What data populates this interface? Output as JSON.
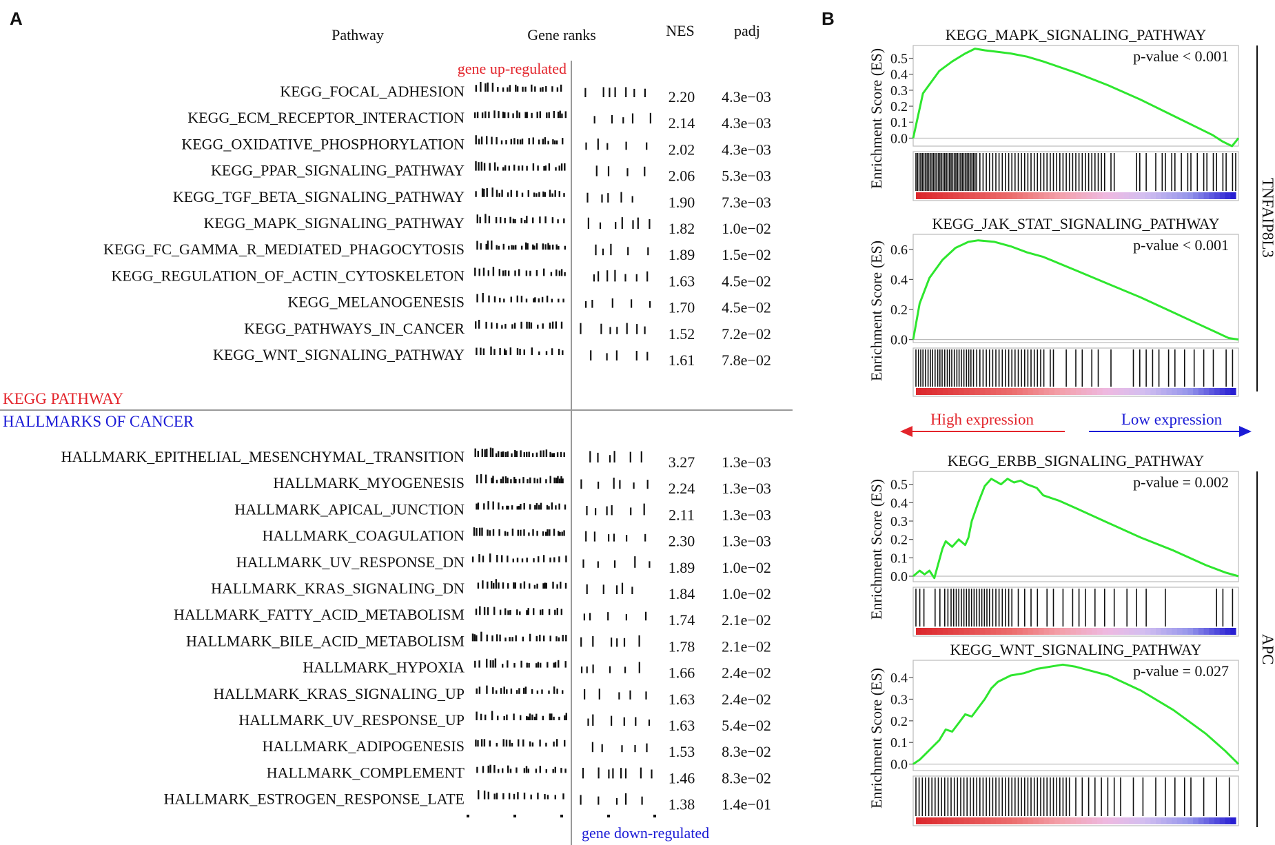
{
  "panel_a": {
    "letter": "A",
    "headers": {
      "pathway": "Pathway",
      "gene_ranks": "Gene ranks",
      "nes": "NES",
      "padj": "padj"
    },
    "up_label": "gene up-regulated",
    "down_label": "gene down-regulated",
    "kegg_section_label": "KEGG PATHWAY",
    "hallmark_section_label": "HALLMARKS OF CANCER",
    "colors": {
      "up": "#e3242b",
      "down": "#1b1bd6",
      "kegg": "#e3242b",
      "hallmark": "#1b1bd6"
    }
  },
  "panel_b": {
    "letter": "B",
    "ylabel": "Enrichment Score (ES)",
    "high_label": "High expression",
    "low_label": "Low expression",
    "groups": [
      {
        "label": "TNFAIP8L3"
      },
      {
        "label": "APC"
      }
    ],
    "colors": {
      "curve": "#2ee62e",
      "high": "#e3242b",
      "low": "#1b1bd6"
    }
  },
  "chart_data": [
    {
      "type": "table",
      "rows": [
        {
          "pathway": "KEGG_FOCAL_ADHESION",
          "nes": "2.20",
          "padj": "4.3e−03"
        },
        {
          "pathway": "KEGG_ECM_RECEPTOR_INTERACTION",
          "nes": "2.14",
          "padj": "4.3e−03"
        },
        {
          "pathway": "KEGG_OXIDATIVE_PHOSPHORYLATION",
          "nes": "2.02",
          "padj": "4.3e−03"
        },
        {
          "pathway": "KEGG_PPAR_SIGNALING_PATHWAY",
          "nes": "2.06",
          "padj": "5.3e−03"
        },
        {
          "pathway": "KEGG_TGF_BETA_SIGNALING_PATHWAY",
          "nes": "1.90",
          "padj": "7.3e−03"
        },
        {
          "pathway": "KEGG_MAPK_SIGNALING_PATHWAY",
          "nes": "1.82",
          "padj": "1.0e−02"
        },
        {
          "pathway": "KEGG_FC_GAMMA_R_MEDIATED_PHAGOCYTOSIS",
          "nes": "1.89",
          "padj": "1.5e−02"
        },
        {
          "pathway": "KEGG_REGULATION_OF_ACTIN_CYTOSKELETON",
          "nes": "1.63",
          "padj": "4.5e−02"
        },
        {
          "pathway": "KEGG_MELANOGENESIS",
          "nes": "1.70",
          "padj": "4.5e−02"
        },
        {
          "pathway": "KEGG_PATHWAYS_IN_CANCER",
          "nes": "1.52",
          "padj": "7.2e−02"
        },
        {
          "pathway": "KEGG_WNT_SIGNALING_PATHWAY",
          "nes": "1.61",
          "padj": "7.8e−02"
        },
        {
          "pathway": "HALLMARK_EPITHELIAL_MESENCHYMAL_TRANSITION",
          "nes": "3.27",
          "padj": "1.3e−03"
        },
        {
          "pathway": "HALLMARK_MYOGENESIS",
          "nes": "2.24",
          "padj": "1.3e−03"
        },
        {
          "pathway": "HALLMARK_APICAL_JUNCTION",
          "nes": "2.11",
          "padj": "1.3e−03"
        },
        {
          "pathway": "HALLMARK_COAGULATION",
          "nes": "2.30",
          "padj": "1.3e−03"
        },
        {
          "pathway": "HALLMARK_UV_RESPONSE_DN",
          "nes": "1.89",
          "padj": "1.0e−02"
        },
        {
          "pathway": "HALLMARK_KRAS_SIGNALING_DN",
          "nes": "1.84",
          "padj": "1.0e−02"
        },
        {
          "pathway": "HALLMARK_FATTY_ACID_METABOLISM",
          "nes": "1.74",
          "padj": "2.1e−02"
        },
        {
          "pathway": "HALLMARK_BILE_ACID_METABOLISM",
          "nes": "1.78",
          "padj": "2.1e−02"
        },
        {
          "pathway": "HALLMARK_HYPOXIA",
          "nes": "1.66",
          "padj": "2.4e−02"
        },
        {
          "pathway": "HALLMARK_KRAS_SIGNALING_UP",
          "nes": "1.63",
          "padj": "2.4e−02"
        },
        {
          "pathway": "HALLMARK_UV_RESPONSE_UP",
          "nes": "1.63",
          "padj": "5.4e−02"
        },
        {
          "pathway": "HALLMARK_ADIPOGENESIS",
          "nes": "1.53",
          "padj": "8.3e−02"
        },
        {
          "pathway": "HALLMARK_COMPLEMENT",
          "nes": "1.46",
          "padj": "8.3e−02"
        },
        {
          "pathway": "HALLMARK_ESTROGEN_RESPONSE_LATE",
          "nes": "1.38",
          "padj": "1.4e−01"
        }
      ]
    },
    {
      "type": "line",
      "title": "KEGG_MAPK_SIGNALING_PATHWAY",
      "annotation": "p-value < 0.001",
      "group": "TNFAIP8L3",
      "ylabel": "Enrichment Score (ES)",
      "x": [
        0,
        0.03,
        0.08,
        0.12,
        0.16,
        0.19,
        0.22,
        0.26,
        0.3,
        0.35,
        0.4,
        0.5,
        0.6,
        0.7,
        0.8,
        0.87,
        0.92,
        0.95,
        0.98,
        1.0
      ],
      "y": [
        0.0,
        0.28,
        0.42,
        0.48,
        0.53,
        0.56,
        0.55,
        0.54,
        0.53,
        0.51,
        0.48,
        0.41,
        0.33,
        0.24,
        0.14,
        0.07,
        0.02,
        -0.02,
        -0.05,
        0.0
      ],
      "ylim": [
        -0.05,
        0.58
      ],
      "yticks": [
        "0.5",
        "0.4",
        "0.3",
        "0.2",
        "0.1",
        "0.0"
      ],
      "ytick_values": [
        0.5,
        0.4,
        0.3,
        0.2,
        0.1,
        0.0
      ],
      "hits": [
        0.0,
        0.005,
        0.01,
        0.015,
        0.02,
        0.025,
        0.03,
        0.035,
        0.04,
        0.045,
        0.05,
        0.055,
        0.06,
        0.065,
        0.07,
        0.075,
        0.08,
        0.085,
        0.09,
        0.095,
        0.1,
        0.105,
        0.11,
        0.115,
        0.12,
        0.125,
        0.13,
        0.135,
        0.14,
        0.145,
        0.15,
        0.155,
        0.16,
        0.165,
        0.17,
        0.175,
        0.18,
        0.185,
        0.19,
        0.2,
        0.21,
        0.22,
        0.23,
        0.24,
        0.25,
        0.26,
        0.27,
        0.28,
        0.29,
        0.3,
        0.31,
        0.32,
        0.33,
        0.34,
        0.35,
        0.36,
        0.37,
        0.38,
        0.39,
        0.4,
        0.41,
        0.42,
        0.43,
        0.44,
        0.45,
        0.46,
        0.47,
        0.48,
        0.49,
        0.5,
        0.51,
        0.52,
        0.53,
        0.54,
        0.55,
        0.56,
        0.57,
        0.58,
        0.59,
        0.61,
        0.62,
        0.69,
        0.7,
        0.72,
        0.75,
        0.77,
        0.78,
        0.8,
        0.81,
        0.83,
        0.85,
        0.86,
        0.88,
        0.9,
        0.91,
        0.93,
        0.94,
        0.96,
        0.97,
        0.99,
        1.0
      ]
    },
    {
      "type": "line",
      "title": "KEGG_JAK_STAT_SIGNALING_PATHWAY",
      "annotation": "p-value < 0.001",
      "group": "TNFAIP8L3",
      "ylabel": "Enrichment Score (ES)",
      "x": [
        0,
        0.02,
        0.05,
        0.09,
        0.13,
        0.17,
        0.2,
        0.25,
        0.3,
        0.35,
        0.4,
        0.5,
        0.6,
        0.7,
        0.8,
        0.87,
        0.93,
        0.97,
        1.0
      ],
      "y": [
        0.0,
        0.24,
        0.41,
        0.53,
        0.61,
        0.65,
        0.66,
        0.65,
        0.62,
        0.58,
        0.55,
        0.46,
        0.37,
        0.28,
        0.18,
        0.11,
        0.05,
        0.01,
        0.0
      ],
      "ylim": [
        -0.02,
        0.7
      ],
      "yticks": [
        "0.6",
        "0.4",
        "0.2",
        "0.0"
      ],
      "ytick_values": [
        0.6,
        0.4,
        0.2,
        0.0
      ],
      "hits": [
        0.0,
        0.008,
        0.015,
        0.022,
        0.03,
        0.038,
        0.045,
        0.052,
        0.06,
        0.068,
        0.075,
        0.082,
        0.09,
        0.098,
        0.105,
        0.112,
        0.12,
        0.128,
        0.135,
        0.142,
        0.15,
        0.158,
        0.165,
        0.172,
        0.18,
        0.19,
        0.2,
        0.21,
        0.22,
        0.23,
        0.24,
        0.25,
        0.26,
        0.27,
        0.28,
        0.29,
        0.3,
        0.31,
        0.32,
        0.33,
        0.34,
        0.35,
        0.36,
        0.37,
        0.38,
        0.39,
        0.4,
        0.42,
        0.43,
        0.47,
        0.5,
        0.52,
        0.55,
        0.57,
        0.61,
        0.68,
        0.7,
        0.72,
        0.74,
        0.76,
        0.79,
        0.81,
        0.84,
        0.87,
        0.9,
        0.93,
        0.97,
        0.99
      ]
    },
    {
      "type": "line",
      "title": "KEGG_ERBB_SIGNALING_PATHWAY",
      "annotation": "p-value = 0.002",
      "group": "APC",
      "ylabel": "Enrichment Score (ES)",
      "x": [
        0,
        0.02,
        0.035,
        0.05,
        0.065,
        0.09,
        0.1,
        0.12,
        0.14,
        0.16,
        0.17,
        0.18,
        0.2,
        0.22,
        0.24,
        0.25,
        0.27,
        0.29,
        0.31,
        0.33,
        0.35,
        0.38,
        0.4,
        0.45,
        0.5,
        0.6,
        0.7,
        0.8,
        0.9,
        0.96,
        1.0
      ],
      "y": [
        0.0,
        0.03,
        0.01,
        0.03,
        -0.01,
        0.15,
        0.19,
        0.16,
        0.2,
        0.17,
        0.21,
        0.3,
        0.4,
        0.49,
        0.53,
        0.52,
        0.5,
        0.53,
        0.51,
        0.52,
        0.5,
        0.48,
        0.44,
        0.41,
        0.37,
        0.29,
        0.21,
        0.14,
        0.06,
        0.02,
        0.0
      ],
      "ylim": [
        -0.03,
        0.57
      ],
      "yticks": [
        "0.5",
        "0.4",
        "0.3",
        "0.2",
        "0.1",
        "0.0"
      ],
      "ytick_values": [
        0.5,
        0.4,
        0.3,
        0.2,
        0.1,
        0.0
      ],
      "hits": [
        0.0,
        0.012,
        0.025,
        0.06,
        0.075,
        0.09,
        0.1,
        0.11,
        0.118,
        0.126,
        0.134,
        0.142,
        0.15,
        0.158,
        0.166,
        0.174,
        0.182,
        0.19,
        0.198,
        0.206,
        0.214,
        0.222,
        0.23,
        0.24,
        0.25,
        0.26,
        0.27,
        0.28,
        0.29,
        0.3,
        0.32,
        0.34,
        0.36,
        0.38,
        0.41,
        0.43,
        0.46,
        0.49,
        0.51,
        0.53,
        0.56,
        0.59,
        0.62,
        0.66,
        0.69,
        0.72,
        0.78,
        0.94,
        0.96,
        0.99
      ]
    },
    {
      "type": "line",
      "title": "KEGG_WNT_SIGNALING_PATHWAY",
      "annotation": "p-value = 0.027",
      "group": "APC",
      "ylabel": "Enrichment Score (ES)",
      "x": [
        0,
        0.02,
        0.04,
        0.06,
        0.08,
        0.1,
        0.12,
        0.14,
        0.16,
        0.18,
        0.2,
        0.22,
        0.24,
        0.26,
        0.3,
        0.34,
        0.38,
        0.42,
        0.46,
        0.5,
        0.55,
        0.6,
        0.7,
        0.8,
        0.9,
        0.96,
        1.0
      ],
      "y": [
        0.0,
        0.02,
        0.05,
        0.08,
        0.11,
        0.16,
        0.15,
        0.19,
        0.23,
        0.22,
        0.26,
        0.3,
        0.35,
        0.38,
        0.41,
        0.42,
        0.44,
        0.45,
        0.46,
        0.45,
        0.43,
        0.41,
        0.34,
        0.25,
        0.14,
        0.06,
        0.0
      ],
      "ylim": [
        -0.03,
        0.48
      ],
      "yticks": [
        "0.4",
        "0.3",
        "0.2",
        "0.1",
        "0.0"
      ],
      "ytick_values": [
        0.4,
        0.3,
        0.2,
        0.1,
        0.0
      ],
      "hits": [
        0.0,
        0.01,
        0.02,
        0.03,
        0.04,
        0.05,
        0.06,
        0.07,
        0.08,
        0.09,
        0.1,
        0.11,
        0.12,
        0.13,
        0.14,
        0.15,
        0.16,
        0.17,
        0.18,
        0.19,
        0.2,
        0.21,
        0.22,
        0.23,
        0.24,
        0.25,
        0.26,
        0.27,
        0.28,
        0.29,
        0.3,
        0.31,
        0.32,
        0.33,
        0.34,
        0.35,
        0.36,
        0.37,
        0.38,
        0.39,
        0.4,
        0.41,
        0.42,
        0.43,
        0.44,
        0.45,
        0.46,
        0.47,
        0.48,
        0.5,
        0.52,
        0.54,
        0.56,
        0.58,
        0.6,
        0.62,
        0.64,
        0.68,
        0.71,
        0.75,
        0.78,
        0.81,
        0.84,
        0.86,
        0.9,
        0.94,
        0.98
      ]
    }
  ]
}
